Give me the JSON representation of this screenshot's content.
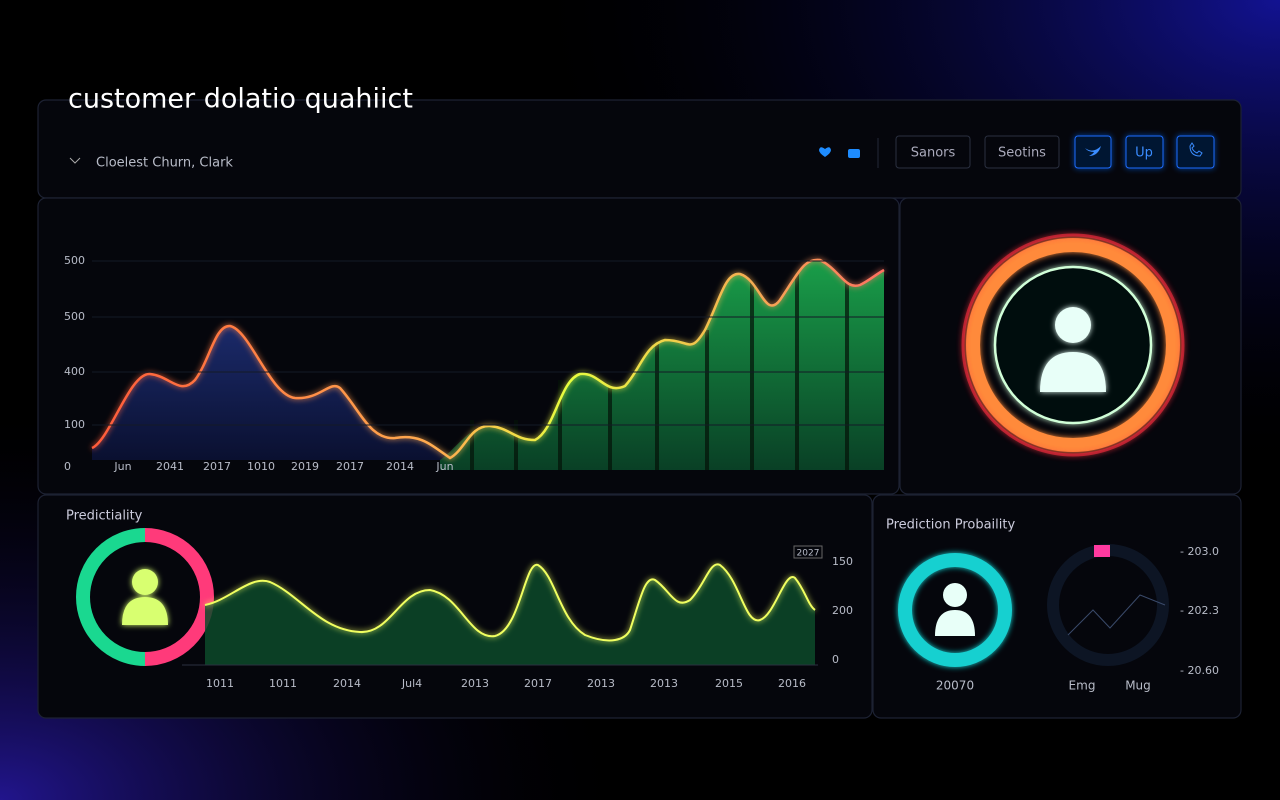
{
  "header": {
    "title": "customer dolatio quahiict",
    "breadcrumb": "Cloelest Churn, Clark",
    "buttons": [
      "Sanors",
      "Seotins",
      "Up"
    ]
  },
  "main_chart": {
    "y_labels": [
      "500",
      "500",
      "400",
      "100",
      "0"
    ],
    "x_labels": [
      "Jun",
      "2041",
      "2017",
      "1010",
      "2019",
      "2017",
      "2014",
      "Jun"
    ]
  },
  "predict_panel": {
    "title": "Predictiality",
    "tag": "2027",
    "y_labels": [
      "150",
      "200",
      "0"
    ],
    "x_labels": [
      "1011",
      "1011",
      "2014",
      "Jul4",
      "2013",
      "2017",
      "2013",
      "2013",
      "2015",
      "2016"
    ]
  },
  "probability_panel": {
    "title": "Prediction Probaility",
    "value": "20070",
    "gauge_labels": [
      "Emg",
      "Mug"
    ],
    "y_labels": [
      "- 203.0",
      "- 202.3",
      "- 20.60"
    ]
  }
}
